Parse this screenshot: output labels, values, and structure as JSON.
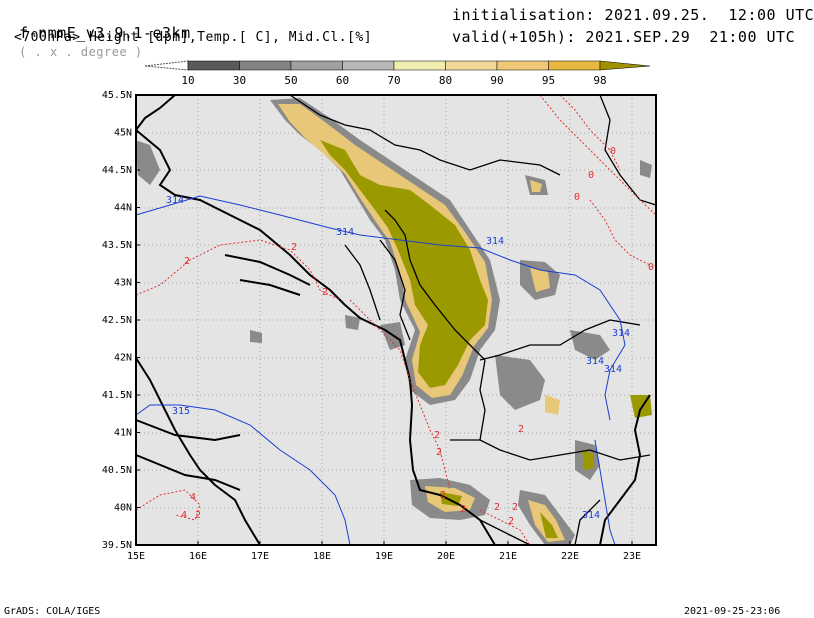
{
  "header": {
    "model_name": "f-nmmE_v3.9.1-e3km",
    "projection_note": "( . x . degree )",
    "initialisation": "initialisation: 2021.09.25.  12:00 UTC",
    "subtitle": "<700hPa> Height [dpm],Temp.[ C], Mid.Cl.[%]",
    "valid": "valid(+105h): 2021.SEP.29  21:00 UTC"
  },
  "colorbar": {
    "labels": [
      "10",
      "30",
      "50",
      "60",
      "70",
      "80",
      "90",
      "95",
      "98"
    ],
    "colors": [
      "#5a5a5a",
      "#828282",
      "#a0a0a0",
      "#b9b9b9",
      "#f0ecb0",
      "#f0d898",
      "#f0c878",
      "#e8b840",
      "#a09000"
    ]
  },
  "map": {
    "lat_labels": [
      "45.5N",
      "45N",
      "44.5N",
      "44N",
      "43.5N",
      "43N",
      "42.5N",
      "42N",
      "41.5N",
      "41N",
      "40.5N",
      "40N",
      "39.5N"
    ],
    "lon_labels": [
      "15E",
      "16E",
      "17E",
      "18E",
      "19E",
      "20E",
      "21E",
      "22E",
      "23E"
    ],
    "contour_labels_height": [
      "314",
      "314",
      "314",
      "314",
      "314",
      "314",
      "315",
      "314"
    ],
    "contour_labels_temp": [
      "0",
      "0",
      "0",
      "0",
      "2",
      "2",
      "2",
      "2",
      "2",
      "2",
      "2",
      "2",
      "2",
      "2",
      "2",
      "4",
      "4",
      "2"
    ],
    "colors": {
      "land": "#e6e6e6",
      "sea": "#e6e6e6",
      "height": "#1a3fd0",
      "temp": "#e03030",
      "cloud_dark": "#9a9a00",
      "cloud_mid": "#e8c878",
      "cloud_light": "#8a8a8a"
    }
  },
  "footer": {
    "left": "GrADS: COLA/IGES",
    "right": "2021-09-25-23:06"
  }
}
